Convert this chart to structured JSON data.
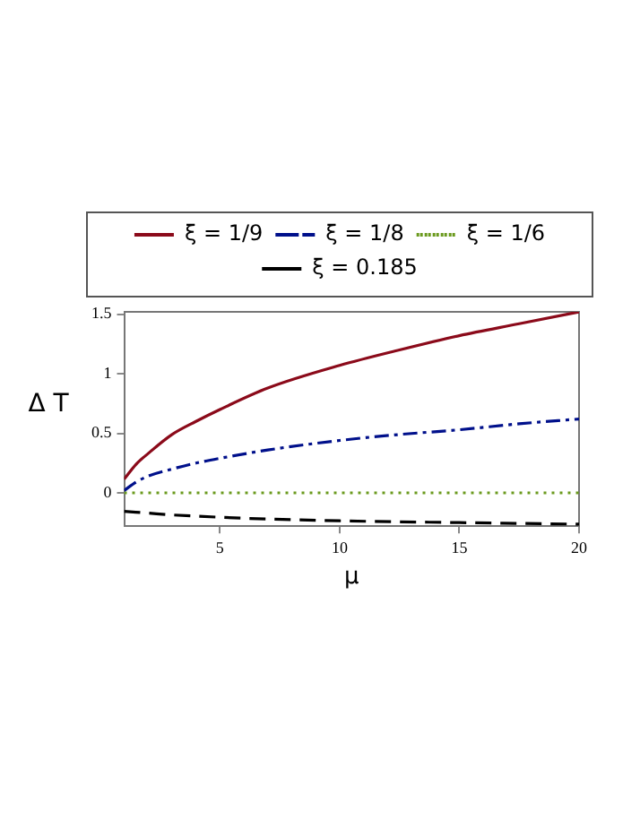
{
  "chart_data": {
    "type": "line",
    "xlabel": "μ",
    "ylabel": "Δ T",
    "xlim": [
      1,
      20
    ],
    "ylim": [
      -0.28,
      1.52
    ],
    "xticks": [
      5,
      10,
      15,
      20
    ],
    "yticks": [
      0,
      0.5,
      1,
      1.5
    ],
    "grid": false,
    "legend": "top",
    "marker": "none",
    "series": [
      {
        "name": "ξ = 1/9",
        "color": "#8b0a1a",
        "line_style": "solid",
        "x": [
          1,
          1.5,
          2,
          3,
          4,
          5,
          7,
          10,
          12.5,
          15,
          17.5,
          20
        ],
        "values": [
          0.115,
          0.24,
          0.33,
          0.49,
          0.6,
          0.7,
          0.88,
          1.07,
          1.2,
          1.32,
          1.42,
          1.52
        ]
      },
      {
        "name": "ξ = 1/8",
        "color": "#00108b",
        "line_style": "dashdot",
        "x": [
          1,
          1.5,
          2,
          3,
          4,
          5,
          7,
          10,
          12.5,
          15,
          17.5,
          20
        ],
        "values": [
          0.02,
          0.09,
          0.14,
          0.2,
          0.25,
          0.29,
          0.36,
          0.44,
          0.49,
          0.53,
          0.58,
          0.62
        ]
      },
      {
        "name": "ξ = 1/6",
        "color": "#6b9a1e",
        "line_style": "dotted",
        "x": [
          1,
          20
        ],
        "values": [
          0,
          0
        ]
      },
      {
        "name": "ξ = 0.185",
        "color": "#000000",
        "line_style": "dashed",
        "x": [
          1,
          2,
          3,
          5,
          7,
          10,
          15,
          20
        ],
        "values": [
          -0.155,
          -0.17,
          -0.185,
          -0.205,
          -0.22,
          -0.235,
          -0.25,
          -0.263
        ]
      }
    ]
  }
}
